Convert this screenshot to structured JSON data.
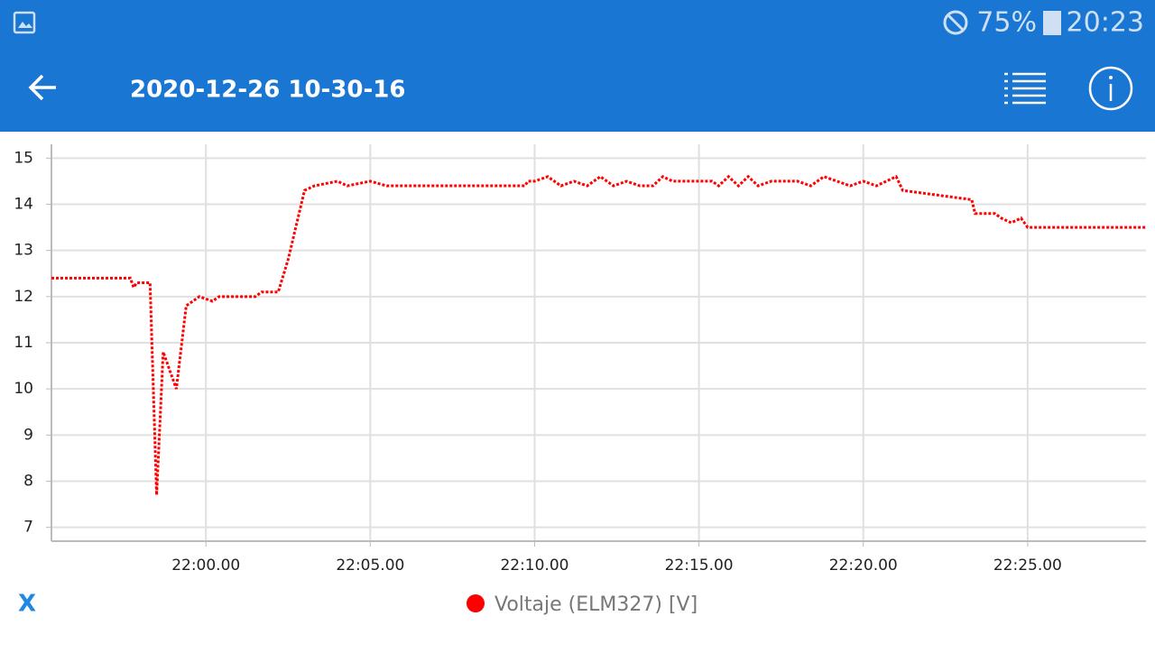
{
  "status_bar": {
    "battery": "75%",
    "time": "20:23"
  },
  "app_bar": {
    "title": "2020-12-26 10-30-16"
  },
  "axis_toggle": "X",
  "chart_data": {
    "type": "line",
    "x": [
      1315.3,
      1317.7,
      1317.8,
      1317.9,
      1318.3,
      1318.5,
      1318.7,
      1318.9,
      1319.1,
      1319.4,
      1319.6,
      1319.8,
      1320.2,
      1320.4,
      1321.5,
      1321.7,
      1322.2,
      1322.5,
      1322.7,
      1323.0,
      1323.3,
      1324.0,
      1324.3,
      1325.0,
      1325.5,
      1329.7,
      1329.8,
      1330.0,
      1330.4,
      1330.8,
      1331.2,
      1331.6,
      1332.0,
      1332.4,
      1332.8,
      1333.2,
      1333.6,
      1333.9,
      1334.2,
      1335.0,
      1335.4,
      1335.6,
      1335.9,
      1336.2,
      1336.5,
      1336.8,
      1337.2,
      1338.0,
      1338.4,
      1338.8,
      1339.2,
      1339.6,
      1340.0,
      1340.4,
      1341.0,
      1341.2,
      1343.3,
      1343.4,
      1344.0,
      1344.2,
      1344.5,
      1344.8,
      1345.0,
      1348.6
    ],
    "series": [
      {
        "name": "Voltaje (ELM327) [V]",
        "color": "#ff0000",
        "values": [
          12.4,
          12.4,
          12.2,
          12.3,
          12.3,
          7.7,
          10.8,
          10.4,
          10.0,
          11.8,
          11.9,
          12.0,
          11.9,
          12.0,
          12.0,
          12.1,
          12.1,
          12.8,
          13.4,
          14.3,
          14.4,
          14.5,
          14.4,
          14.5,
          14.4,
          14.4,
          14.5,
          14.5,
          14.6,
          14.4,
          14.5,
          14.4,
          14.6,
          14.4,
          14.5,
          14.4,
          14.4,
          14.6,
          14.5,
          14.5,
          14.5,
          14.4,
          14.6,
          14.4,
          14.6,
          14.4,
          14.5,
          14.5,
          14.4,
          14.6,
          14.5,
          14.4,
          14.5,
          14.4,
          14.6,
          14.3,
          14.1,
          13.8,
          13.8,
          13.7,
          13.6,
          13.7,
          13.5,
          13.5
        ]
      }
    ],
    "xlim": [
      1315.3,
      1348.6
    ],
    "xticks": [
      {
        "value": 1320,
        "label": "22:00.00"
      },
      {
        "value": 1325,
        "label": "22:05.00"
      },
      {
        "value": 1330,
        "label": "22:10.00"
      },
      {
        "value": 1335,
        "label": "22:15.00"
      },
      {
        "value": 1340,
        "label": "22:20.00"
      },
      {
        "value": 1345,
        "label": "22:25.00"
      }
    ],
    "ylim": [
      6.7,
      15.3
    ],
    "yticks": [
      7,
      8,
      9,
      10,
      11,
      12,
      13,
      14,
      15
    ],
    "grid": true
  }
}
